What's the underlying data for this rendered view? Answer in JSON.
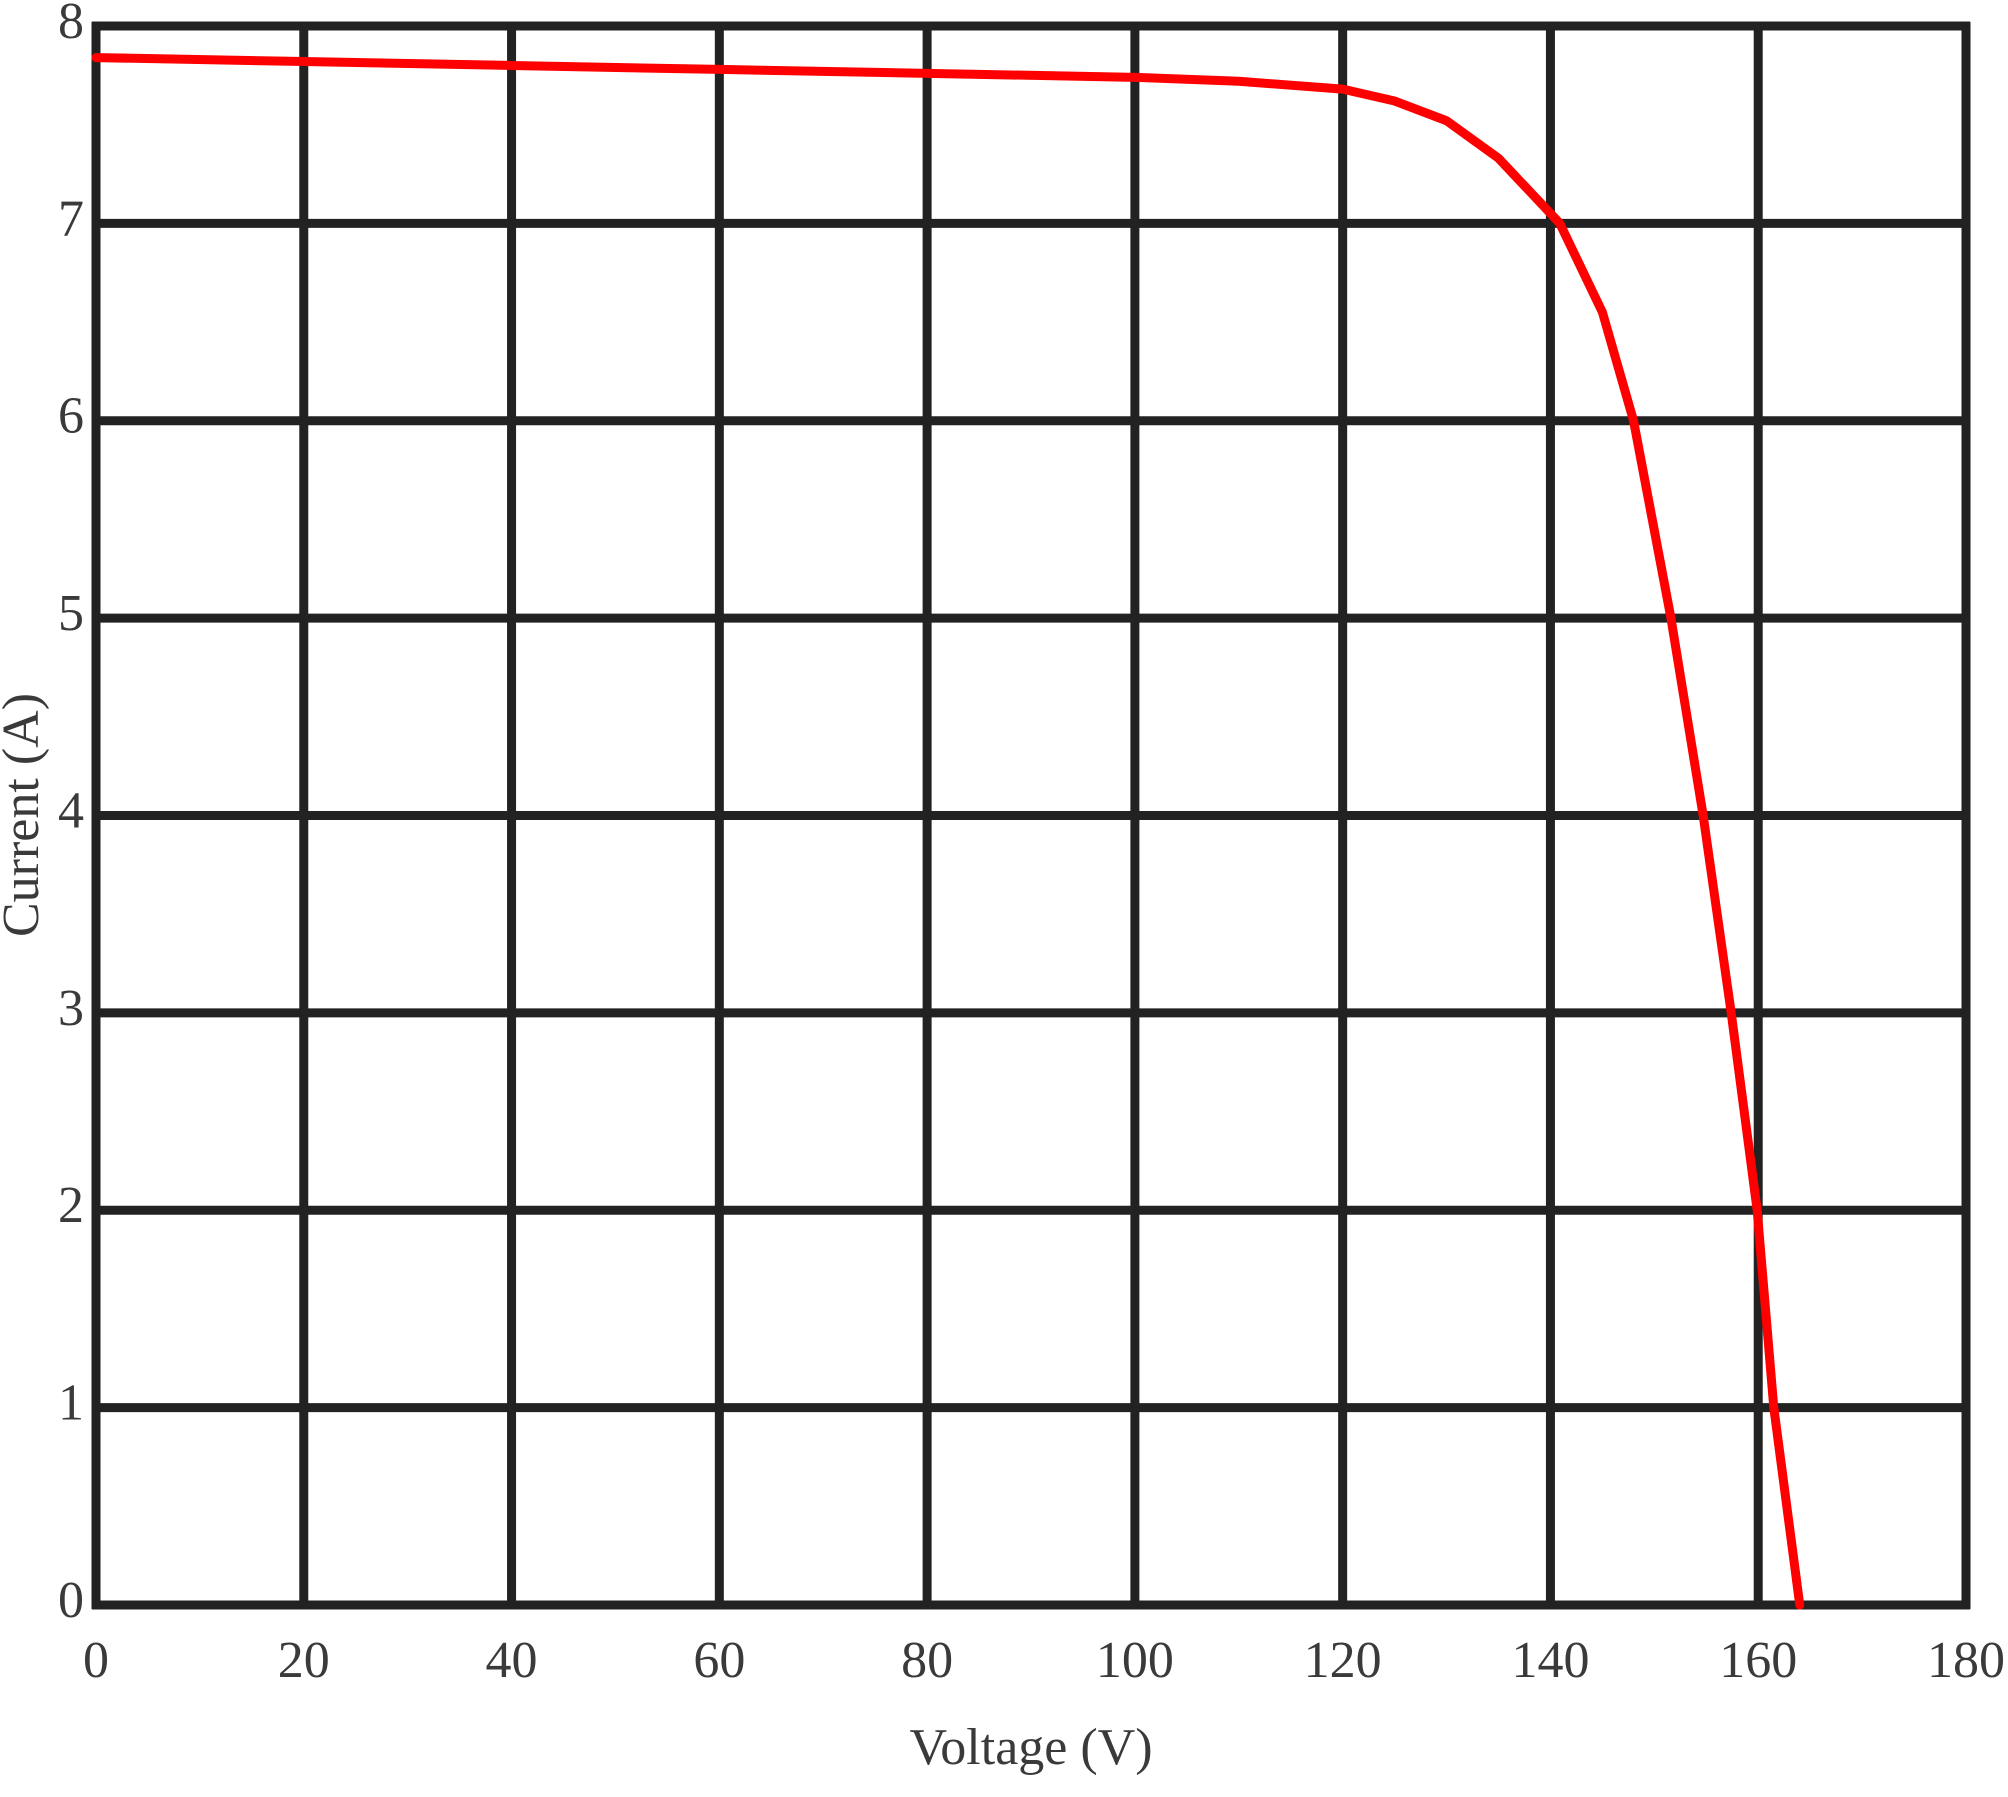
{
  "chart_data": {
    "type": "line",
    "x_label": "Voltage (V)",
    "y_label": "Current (A)",
    "series": [
      {
        "color": "#ff0000",
        "x": [
          0,
          20,
          40,
          60,
          80,
          100,
          110,
          120,
          125,
          130,
          135,
          140.9,
          145,
          148,
          151.6,
          154.7,
          157.4,
          159.9,
          161.5,
          164
        ],
        "values": [
          7.84,
          7.82,
          7.8,
          7.78,
          7.76,
          7.74,
          7.72,
          7.68,
          7.62,
          7.52,
          7.33,
          7,
          6.55,
          6,
          5,
          4,
          3,
          2,
          1,
          0
        ]
      }
    ],
    "xlim": [
      0,
      180
    ],
    "xticks": [
      0,
      20,
      40,
      60,
      80,
      100,
      120,
      140,
      160,
      180
    ],
    "ylim": [
      0,
      8
    ],
    "yticks": [
      0,
      1,
      2,
      3,
      4,
      5,
      6,
      7,
      8
    ],
    "grid": true
  }
}
